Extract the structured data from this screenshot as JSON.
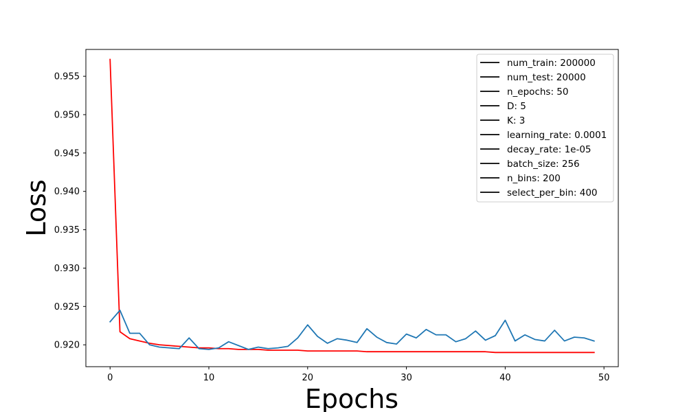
{
  "chart_data": {
    "type": "line",
    "title": "",
    "xlabel": "Epochs",
    "ylabel": "Loss",
    "xlim": [
      -2.45,
      51.45
    ],
    "ylim": [
      0.91715,
      0.9585
    ],
    "xticks": [
      0,
      10,
      20,
      30,
      40,
      50
    ],
    "yticks": [
      0.92,
      0.925,
      0.93,
      0.935,
      0.94,
      0.945,
      0.95,
      0.955
    ],
    "grid": false,
    "legend_placement": "top-right",
    "legend_entries": [
      "num_train: 200000",
      "num_test: 20000",
      "n_epochs: 50",
      "D: 5",
      "K: 3",
      "learning_rate: 0.0001",
      "decay_rate: 1e-05",
      "batch_size: 256",
      "n_bins: 200",
      "select_per_bin: 400"
    ],
    "legend_line_color": "#000000",
    "x": [
      0,
      1,
      2,
      3,
      4,
      5,
      6,
      7,
      8,
      9,
      10,
      11,
      12,
      13,
      14,
      15,
      16,
      17,
      18,
      19,
      20,
      21,
      22,
      23,
      24,
      25,
      26,
      27,
      28,
      29,
      30,
      31,
      32,
      33,
      34,
      35,
      36,
      37,
      38,
      39,
      40,
      41,
      42,
      43,
      44,
      45,
      46,
      47,
      48,
      49
    ],
    "series": [
      {
        "color": "#ff0000",
        "values": [
          0.9572,
          0.9217,
          0.9208,
          0.9205,
          0.9202,
          0.92,
          0.9199,
          0.9198,
          0.9197,
          0.9196,
          0.9196,
          0.9195,
          0.9195,
          0.9194,
          0.9194,
          0.9194,
          0.9193,
          0.9193,
          0.9193,
          0.9193,
          0.9192,
          0.9192,
          0.9192,
          0.9192,
          0.9192,
          0.9192,
          0.9191,
          0.9191,
          0.9191,
          0.9191,
          0.9191,
          0.9191,
          0.9191,
          0.9191,
          0.9191,
          0.9191,
          0.9191,
          0.9191,
          0.9191,
          0.919,
          0.919,
          0.919,
          0.919,
          0.919,
          0.919,
          0.919,
          0.919,
          0.919,
          0.919,
          0.919
        ]
      },
      {
        "color": "#1f77b4",
        "values": [
          0.923,
          0.9245,
          0.9215,
          0.9215,
          0.92,
          0.9197,
          0.9196,
          0.9195,
          0.9209,
          0.9195,
          0.9194,
          0.9196,
          0.9204,
          0.9199,
          0.9194,
          0.9197,
          0.9195,
          0.9196,
          0.9198,
          0.9209,
          0.9226,
          0.9211,
          0.9202,
          0.9208,
          0.9206,
          0.9203,
          0.9221,
          0.921,
          0.9203,
          0.9201,
          0.9214,
          0.9209,
          0.922,
          0.9213,
          0.9213,
          0.9204,
          0.9208,
          0.9218,
          0.9206,
          0.9212,
          0.9232,
          0.9205,
          0.9213,
          0.9207,
          0.9205,
          0.9219,
          0.9205,
          0.921,
          0.9209,
          0.9205
        ]
      }
    ]
  }
}
